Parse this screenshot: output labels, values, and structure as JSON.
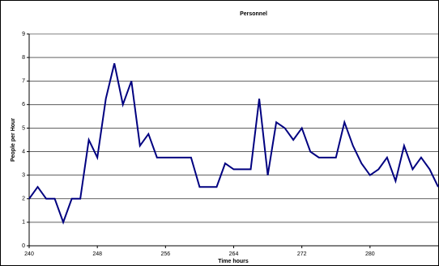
{
  "chart_data": {
    "type": "line",
    "title": "Personnel",
    "x_label": "Time hours",
    "y_label": "People per Hour",
    "x": [
      240,
      241,
      242,
      243,
      244,
      245,
      246,
      247,
      248,
      249,
      250,
      251,
      252,
      253,
      254,
      255,
      256,
      257,
      258,
      259,
      260,
      261,
      262,
      263,
      264,
      265,
      266,
      267,
      268,
      269,
      270,
      271,
      272,
      273,
      274,
      275,
      276,
      277,
      278,
      279,
      280,
      281,
      282,
      283,
      284,
      285,
      286,
      287,
      288
    ],
    "series": [
      {
        "name": "Personnel",
        "color": "#000080",
        "values": [
          2,
          2.5,
          2,
          2,
          1,
          2,
          2,
          4.5,
          3.75,
          6.25,
          7.75,
          6,
          7,
          4.25,
          4.75,
          3.75,
          3.75,
          3.75,
          3.75,
          3.75,
          2.5,
          2.5,
          2.5,
          3.5,
          3.25,
          3.25,
          3.25,
          6.25,
          3,
          5.25,
          5,
          4.5,
          5,
          4,
          3.75,
          3.75,
          3.75,
          5.25,
          4.25,
          3.5,
          3,
          3.25,
          3.75,
          2.75,
          4.25,
          3.25,
          3.75,
          3.25,
          2.5
        ]
      }
    ],
    "xlim": [
      240,
      288
    ],
    "ylim": [
      0,
      9
    ],
    "xticks": [
      240,
      248,
      256,
      264,
      272,
      280
    ],
    "yticks": [
      0,
      1,
      2,
      3,
      4,
      5,
      6,
      7,
      8,
      9
    ],
    "grid": true
  }
}
